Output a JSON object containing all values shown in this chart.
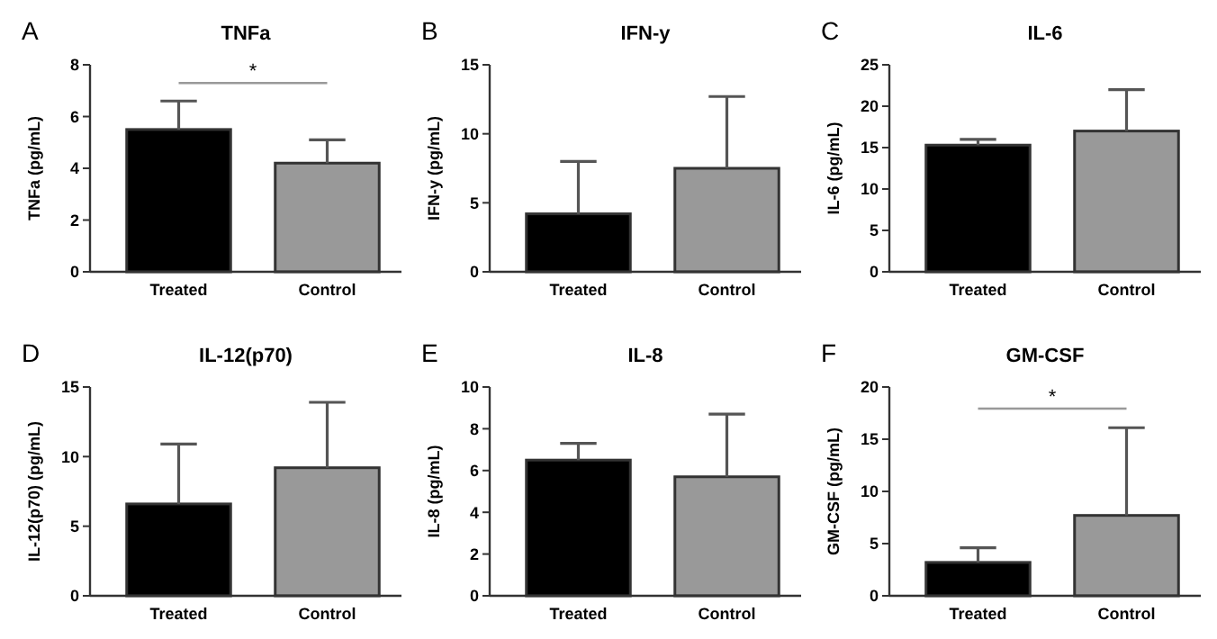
{
  "chart_data": [
    {
      "type": "bar",
      "title": "TNFa",
      "ylabel": "TNFa (pg/mL)",
      "categories": [
        "Treated",
        "Control"
      ],
      "values": [
        5.5,
        4.2
      ],
      "errors": [
        [
          5.5,
          6.6
        ],
        [
          4.2,
          5.1
        ]
      ],
      "colors": [
        "#000000",
        "#999999"
      ],
      "ylim": [
        0,
        8
      ],
      "yticks": [
        0,
        2,
        4,
        6,
        8
      ],
      "annotations": [
        "A",
        "*"
      ]
    },
    {
      "type": "bar",
      "title": "IFN-y",
      "ylabel": "IFN-y (pg/mL)",
      "categories": [
        "Treated",
        "Control"
      ],
      "values": [
        4.2,
        7.5
      ],
      "errors": [
        [
          4.2,
          8.0
        ],
        [
          7.5,
          12.7
        ]
      ],
      "colors": [
        "#000000",
        "#999999"
      ],
      "ylim": [
        0,
        15
      ],
      "yticks": [
        0,
        5,
        10,
        15
      ],
      "annotations": [
        "B"
      ]
    },
    {
      "type": "bar",
      "title": "IL-6",
      "ylabel": "IL-6 (pg/mL)",
      "categories": [
        "Treated",
        "Control"
      ],
      "values": [
        15.3,
        17.0
      ],
      "errors": [
        [
          15.3,
          16.0
        ],
        [
          17.0,
          22.0
        ]
      ],
      "colors": [
        "#000000",
        "#999999"
      ],
      "ylim": [
        0,
        25
      ],
      "yticks": [
        0,
        5,
        10,
        15,
        20,
        25
      ],
      "annotations": [
        "C"
      ]
    },
    {
      "type": "bar",
      "title": "IL-12(p70)",
      "ylabel": "IL-12(p70) (pg/mL)",
      "categories": [
        "Treated",
        "Control"
      ],
      "values": [
        6.6,
        9.2
      ],
      "errors": [
        [
          6.6,
          10.9
        ],
        [
          9.2,
          13.9
        ]
      ],
      "colors": [
        "#000000",
        "#999999"
      ],
      "ylim": [
        0,
        15
      ],
      "yticks": [
        0,
        5,
        10,
        15
      ],
      "annotations": [
        "D"
      ]
    },
    {
      "type": "bar",
      "title": "IL-8",
      "ylabel": "IL-8 (pg/mL)",
      "categories": [
        "Treated",
        "Control"
      ],
      "values": [
        6.5,
        5.7
      ],
      "errors": [
        [
          6.5,
          7.3
        ],
        [
          5.7,
          8.7
        ]
      ],
      "colors": [
        "#000000",
        "#999999"
      ],
      "ylim": [
        0,
        10
      ],
      "yticks": [
        0,
        2,
        4,
        6,
        8,
        10
      ],
      "annotations": [
        "E"
      ]
    },
    {
      "type": "bar",
      "title": "GM-CSF",
      "ylabel": "GM-CSF (pg/mL)",
      "categories": [
        "Treated",
        "Control"
      ],
      "values": [
        3.2,
        7.7
      ],
      "errors": [
        [
          3.2,
          4.6
        ],
        [
          7.7,
          16.1
        ]
      ],
      "colors": [
        "#000000",
        "#999999"
      ],
      "ylim": [
        0,
        20
      ],
      "yticks": [
        0,
        5,
        10,
        15,
        20
      ],
      "annotations": [
        "F",
        "*"
      ]
    }
  ]
}
